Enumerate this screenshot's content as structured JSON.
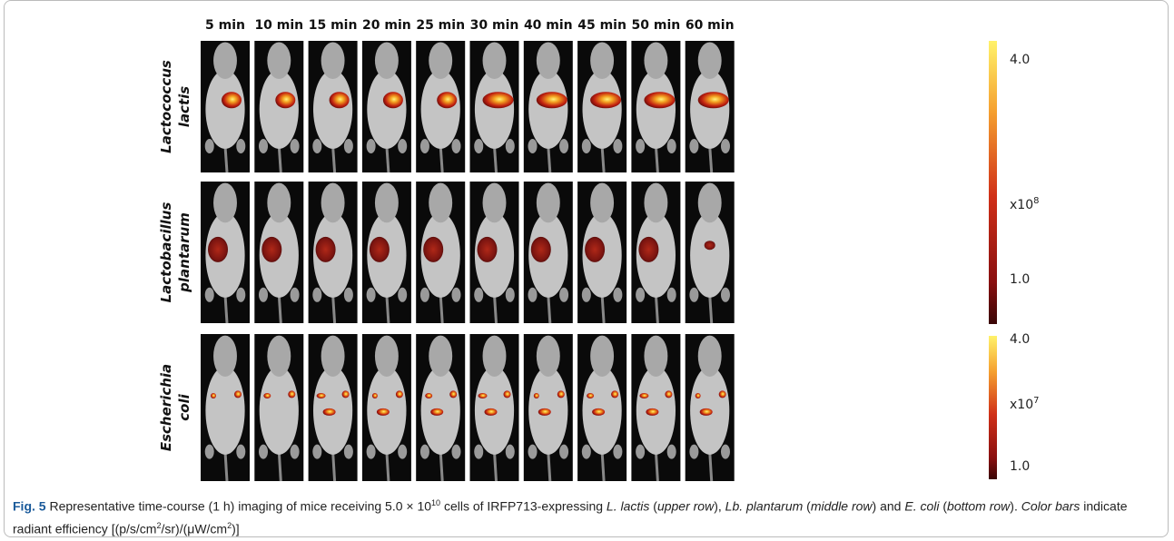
{
  "figure": {
    "time_labels": [
      "5 min",
      "10 min",
      "15 min",
      "20 min",
      "25 min",
      "30 min",
      "40 min",
      "45 min",
      "50 min",
      "60 min"
    ],
    "rows": [
      {
        "lines": [
          "Lactococcus",
          "lactis"
        ]
      },
      {
        "lines": [
          "Lactobacillus",
          "plantarum"
        ]
      },
      {
        "lines": [
          "Escherichia",
          "coli"
        ]
      }
    ],
    "colorbars": [
      {
        "top": "4.0",
        "scale": "x10",
        "exponent": "8",
        "bottom": "1.0"
      },
      {
        "top": "4.0",
        "scale": "x10",
        "exponent": "7",
        "bottom": "1.0"
      }
    ]
  },
  "caption": {
    "segments": [
      "Fig. 5",
      " Representative time-course (1 h) imaging of mice receiving 5.0 × 10",
      "10",
      " cells of IRFP713-expressing ",
      "L. lactis",
      " (",
      "upper row",
      "), ",
      "Lb. plantarum",
      " (",
      "middle row",
      ") and ",
      "E. coli",
      " (",
      "bottom row",
      "). ",
      "Color bars",
      " indicate radiant efficiency [(p/s/cm",
      "2",
      "/sr)/(μW/cm",
      "2",
      ")]"
    ]
  }
}
